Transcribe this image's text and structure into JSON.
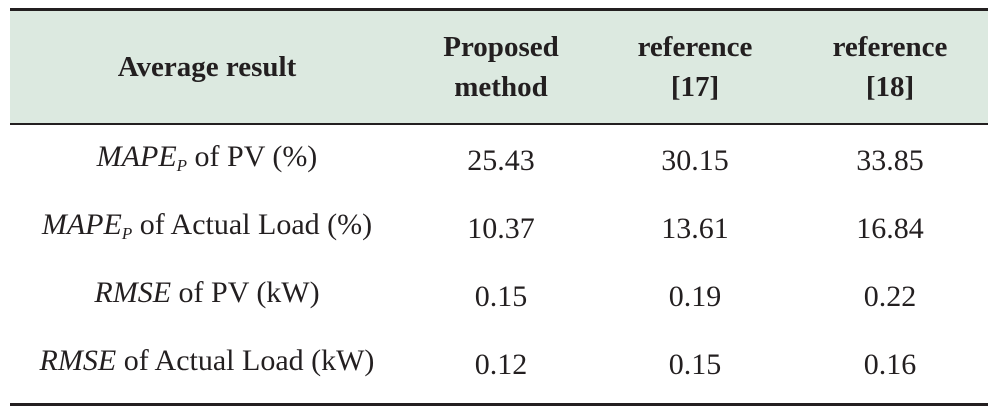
{
  "table": {
    "headers": [
      {
        "lines": [
          "Average result"
        ]
      },
      {
        "lines": [
          "Proposed",
          "method"
        ]
      },
      {
        "lines": [
          "reference",
          "[17]"
        ]
      },
      {
        "lines": [
          "reference",
          "[18]"
        ]
      }
    ],
    "rows": [
      {
        "metric": "MAPE",
        "sub": "P",
        "rest": " of PV (%)",
        "values": [
          "25.43",
          "30.15",
          "33.85"
        ]
      },
      {
        "metric": "MAPE",
        "sub": "P",
        "rest": " of Actual Load (%)",
        "values": [
          "10.37",
          "13.61",
          "16.84"
        ]
      },
      {
        "metric": "RMSE",
        "sub": "",
        "rest": " of PV (kW)",
        "values": [
          "0.15",
          "0.19",
          "0.22"
        ]
      },
      {
        "metric": "RMSE",
        "sub": "",
        "rest": " of Actual Load (kW)",
        "values": [
          "0.12",
          "0.15",
          "0.16"
        ]
      }
    ],
    "colors": {
      "header_bg": "#dce9e0",
      "rule": "#231f20",
      "text": "#231f20"
    }
  }
}
